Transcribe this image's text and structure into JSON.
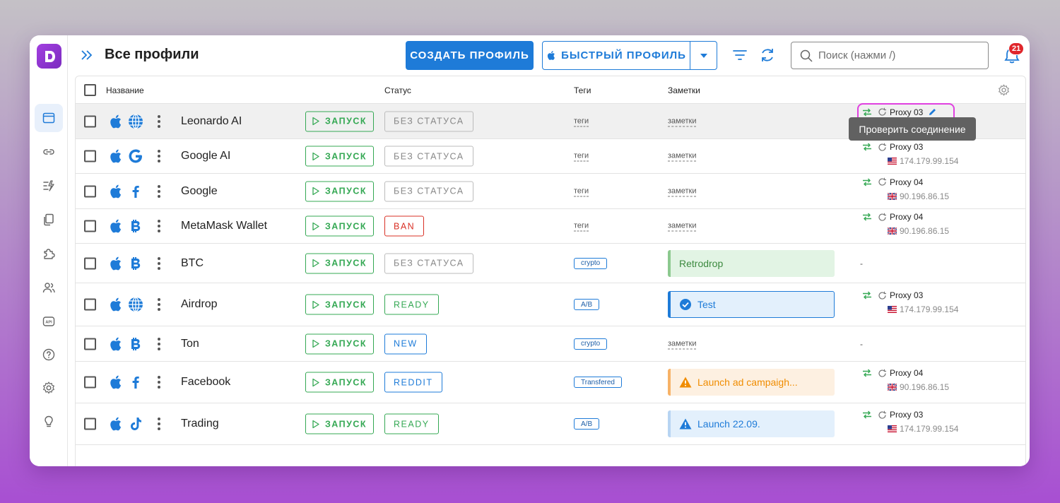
{
  "app": {
    "title": "Все профили",
    "notifications": "21"
  },
  "toolbar": {
    "create_label": "СОЗДАТЬ ПРОФИЛЬ",
    "quick_label": "БЫСТРЫЙ ПРОФИЛЬ",
    "search_placeholder": "Поиск (нажми /)"
  },
  "sidebar": {
    "items": [
      {
        "icon": "browser-window-icon",
        "active": true
      },
      {
        "icon": "link-icon"
      },
      {
        "icon": "automation-icon"
      },
      {
        "icon": "copy-icon"
      },
      {
        "icon": "puzzle-icon"
      },
      {
        "icon": "team-icon"
      },
      {
        "icon": "api-icon",
        "label": "API"
      },
      {
        "icon": "help-icon"
      },
      {
        "icon": "gear-icon"
      },
      {
        "icon": "lightbulb-icon"
      }
    ]
  },
  "columns": {
    "name": "Название",
    "status": "Статус",
    "tags": "Теги",
    "notes": "Заметки"
  },
  "tooltip": "Проверить соединение",
  "start_label": "ЗАПУСК",
  "colors": {
    "accent": "#1e7bd8",
    "green": "#34a853",
    "red": "#d93025",
    "gray": "#888888",
    "note_green_bg": "#e2f4e4",
    "note_green_bar": "#8cc98f",
    "note_blue_bg": "#e3f0fc",
    "note_blue_bar": "#1e7bd8",
    "note_orange_bg": "#fdf0e1",
    "note_orange_bar": "#f7b267"
  },
  "profiles": [
    {
      "name": "Leonardo AI",
      "os": "apple-icon",
      "site": "globe-icon",
      "status": "БЕЗ СТАТУСА",
      "status_type": "gray",
      "tag": "теги",
      "tag_style": "dashed",
      "note": "заметки",
      "note_style": "dashed",
      "proxy": {
        "name": "Proxy 03",
        "ip": "174.179.99.154",
        "flag": "us",
        "editable": true
      },
      "highlight": true
    },
    {
      "name": "Google AI",
      "os": "apple-icon",
      "site": "google-icon",
      "status": "БЕЗ СТАТУСА",
      "status_type": "gray",
      "tag": "теги",
      "tag_style": "dashed",
      "note": "заметки",
      "note_style": "dashed",
      "proxy": {
        "name": "Proxy 03",
        "ip": "174.179.99.154",
        "flag": "us"
      }
    },
    {
      "name": "Google",
      "os": "apple-icon",
      "site": "facebook-icon",
      "status": "БЕЗ СТАТУСА",
      "status_type": "gray",
      "tag": "теги",
      "tag_style": "dashed",
      "note": "заметки",
      "note_style": "dashed",
      "proxy": {
        "name": "Proxy 04",
        "ip": "90.196.86.15",
        "flag": "uk"
      }
    },
    {
      "name": "MetaMask Wallet",
      "os": "apple-icon",
      "site": "bitcoin-icon",
      "status": "BAN",
      "status_type": "red",
      "tag": "теги",
      "tag_style": "dashed",
      "note": "заметки",
      "note_style": "dashed",
      "proxy": {
        "name": "Proxy 04",
        "ip": "90.196.86.15",
        "flag": "uk"
      }
    },
    {
      "name": "BTC",
      "os": "apple-icon",
      "site": "bitcoin-icon",
      "status": "БЕЗ СТАТУСА",
      "status_type": "gray",
      "tag": "crypto",
      "tag_style": "pill",
      "note": "Retrodrop",
      "note_style": "green",
      "proxy": null
    },
    {
      "name": "Airdrop",
      "os": "apple-icon",
      "site": "globe-icon",
      "status": "READY",
      "status_type": "green",
      "tag": "A/B",
      "tag_style": "pill",
      "note": "Test",
      "note_style": "blue-check",
      "proxy": {
        "name": "Proxy 03",
        "ip": "174.179.99.154",
        "flag": "us"
      }
    },
    {
      "name": "Ton",
      "os": "apple-icon",
      "site": "bitcoin-icon",
      "status": "NEW",
      "status_type": "blue",
      "tag": "crypto",
      "tag_style": "pill",
      "note": "заметки",
      "note_style": "dashed",
      "proxy": null
    },
    {
      "name": "Facebook",
      "os": "apple-icon",
      "site": "facebook-icon",
      "status": "REDDIT",
      "status_type": "blue",
      "tag": "Transfered",
      "tag_style": "pill",
      "note": "Launch ad campaigh...",
      "note_style": "orange",
      "proxy": {
        "name": "Proxy 04",
        "ip": "90.196.86.15",
        "flag": "uk"
      }
    },
    {
      "name": "Trading",
      "os": "apple-icon",
      "site": "tiktok-icon",
      "status": "READY",
      "status_type": "green",
      "tag": "A/B",
      "tag_style": "pill",
      "note": "Launch 22.09.",
      "note_style": "blue-warn",
      "proxy": {
        "name": "Proxy 03",
        "ip": "174.179.99.154",
        "flag": "us"
      }
    }
  ],
  "empty_proxy": "-"
}
